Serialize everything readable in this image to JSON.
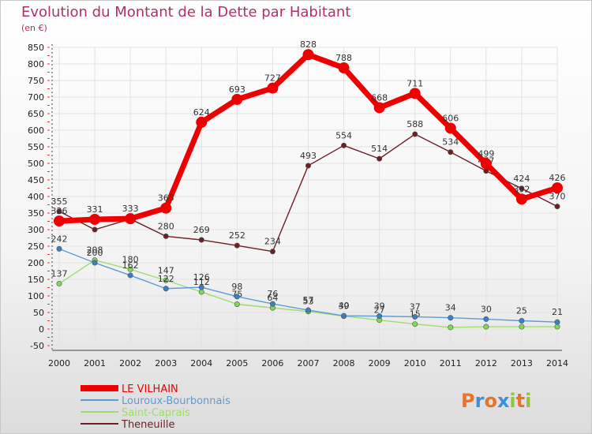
{
  "title": "Evolution du Montant de la Dette par Habitant",
  "subtitle": "(en €)",
  "logo_text": "Proxiti",
  "chart_data": {
    "type": "line",
    "title": "Evolution du Montant de la Dette par Habitant",
    "ylabel": "(en €)",
    "xlabel": "",
    "x": [
      "2000",
      "2001",
      "2002",
      "2003",
      "2004",
      "2005",
      "2006",
      "2007",
      "2008",
      "2009",
      "2010",
      "2011",
      "2012",
      "2013",
      "2014"
    ],
    "ylim": [
      -50,
      850
    ],
    "yticks": [
      -50,
      0,
      50,
      100,
      150,
      200,
      250,
      300,
      350,
      400,
      450,
      500,
      550,
      600,
      650,
      700,
      750,
      800,
      850
    ],
    "grid": true,
    "legend_position": "bottom-left",
    "series": [
      {
        "name": "Theneuille",
        "color": "#6b1f24",
        "marker": "#6b1f24",
        "values": [
          355,
          300,
          332,
          280,
          269,
          252,
          234,
          493,
          554,
          514,
          588,
          534,
          477,
          424,
          370
        ],
        "labels": [
          "355",
          "",
          "",
          "280",
          "269",
          "252",
          "234",
          "493",
          "554",
          "514",
          "588",
          "534",
          "477",
          "424",
          "370"
        ]
      },
      {
        "name": "Saint-Caprais",
        "color": "#9fdc6e",
        "marker": "#7ed957",
        "values": [
          137,
          208,
          180,
          147,
          112,
          75,
          64,
          53,
          39,
          27,
          15,
          5,
          7,
          7,
          7
        ],
        "labels": [
          "137",
          "208",
          "180",
          "147",
          "112",
          "75",
          "64",
          "53",
          "39",
          "27",
          "15",
          "",
          "",
          "",
          ""
        ]
      },
      {
        "name": "Louroux-Bourbonnais",
        "color": "#5b9bd5",
        "marker": "#3a7fc2",
        "values": [
          242,
          200,
          162,
          122,
          126,
          98,
          76,
          57,
          40,
          39,
          37,
          34,
          30,
          25,
          21
        ],
        "labels": [
          "242",
          "200",
          "162",
          "122",
          "126",
          "98",
          "76",
          "57",
          "40",
          "39",
          "37",
          "34",
          "30",
          "25",
          "21"
        ]
      },
      {
        "name": "LE VILHAIN",
        "color": "#ee0000",
        "marker": "#ee0000",
        "values": [
          326,
          331,
          333,
          365,
          624,
          693,
          727,
          828,
          788,
          668,
          711,
          606,
          499,
          392,
          426
        ],
        "labels": [
          "326",
          "331",
          "333",
          "365",
          "624",
          "693",
          "727",
          "828",
          "788",
          "668",
          "711",
          "606",
          "499",
          "392",
          "426"
        ]
      }
    ]
  }
}
